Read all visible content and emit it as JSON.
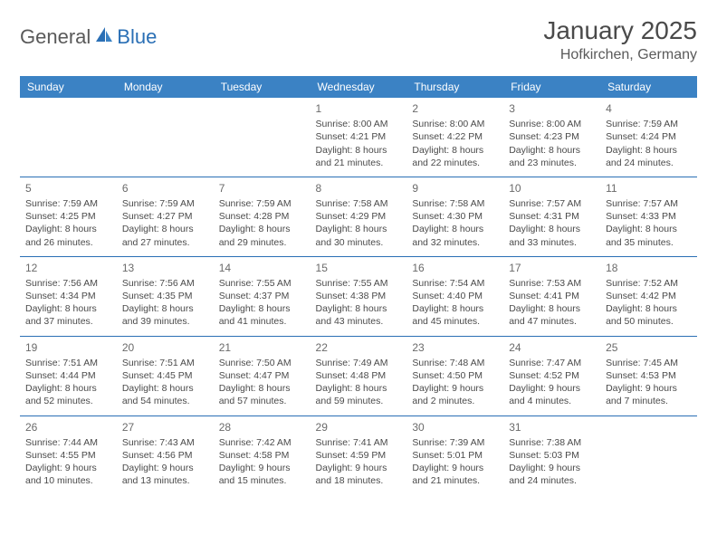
{
  "brand": {
    "part1": "General",
    "part2": "Blue"
  },
  "header": {
    "title": "January 2025",
    "location": "Hofkirchen, Germany"
  },
  "colors": {
    "header_bg": "#3b82c4",
    "border": "#2a6fb5",
    "text": "#4a4a4a",
    "brand_gray": "#5a5a5a",
    "brand_blue": "#2a6fb5"
  },
  "dayNames": [
    "Sunday",
    "Monday",
    "Tuesday",
    "Wednesday",
    "Thursday",
    "Friday",
    "Saturday"
  ],
  "weeks": [
    [
      null,
      null,
      null,
      {
        "n": "1",
        "sr": "8:00 AM",
        "ss": "4:21 PM",
        "dh": "8",
        "dm": "21"
      },
      {
        "n": "2",
        "sr": "8:00 AM",
        "ss": "4:22 PM",
        "dh": "8",
        "dm": "22"
      },
      {
        "n": "3",
        "sr": "8:00 AM",
        "ss": "4:23 PM",
        "dh": "8",
        "dm": "23"
      },
      {
        "n": "4",
        "sr": "7:59 AM",
        "ss": "4:24 PM",
        "dh": "8",
        "dm": "24"
      }
    ],
    [
      {
        "n": "5",
        "sr": "7:59 AM",
        "ss": "4:25 PM",
        "dh": "8",
        "dm": "26"
      },
      {
        "n": "6",
        "sr": "7:59 AM",
        "ss": "4:27 PM",
        "dh": "8",
        "dm": "27"
      },
      {
        "n": "7",
        "sr": "7:59 AM",
        "ss": "4:28 PM",
        "dh": "8",
        "dm": "29"
      },
      {
        "n": "8",
        "sr": "7:58 AM",
        "ss": "4:29 PM",
        "dh": "8",
        "dm": "30"
      },
      {
        "n": "9",
        "sr": "7:58 AM",
        "ss": "4:30 PM",
        "dh": "8",
        "dm": "32"
      },
      {
        "n": "10",
        "sr": "7:57 AM",
        "ss": "4:31 PM",
        "dh": "8",
        "dm": "33"
      },
      {
        "n": "11",
        "sr": "7:57 AM",
        "ss": "4:33 PM",
        "dh": "8",
        "dm": "35"
      }
    ],
    [
      {
        "n": "12",
        "sr": "7:56 AM",
        "ss": "4:34 PM",
        "dh": "8",
        "dm": "37"
      },
      {
        "n": "13",
        "sr": "7:56 AM",
        "ss": "4:35 PM",
        "dh": "8",
        "dm": "39"
      },
      {
        "n": "14",
        "sr": "7:55 AM",
        "ss": "4:37 PM",
        "dh": "8",
        "dm": "41"
      },
      {
        "n": "15",
        "sr": "7:55 AM",
        "ss": "4:38 PM",
        "dh": "8",
        "dm": "43"
      },
      {
        "n": "16",
        "sr": "7:54 AM",
        "ss": "4:40 PM",
        "dh": "8",
        "dm": "45"
      },
      {
        "n": "17",
        "sr": "7:53 AM",
        "ss": "4:41 PM",
        "dh": "8",
        "dm": "47"
      },
      {
        "n": "18",
        "sr": "7:52 AM",
        "ss": "4:42 PM",
        "dh": "8",
        "dm": "50"
      }
    ],
    [
      {
        "n": "19",
        "sr": "7:51 AM",
        "ss": "4:44 PM",
        "dh": "8",
        "dm": "52"
      },
      {
        "n": "20",
        "sr": "7:51 AM",
        "ss": "4:45 PM",
        "dh": "8",
        "dm": "54"
      },
      {
        "n": "21",
        "sr": "7:50 AM",
        "ss": "4:47 PM",
        "dh": "8",
        "dm": "57"
      },
      {
        "n": "22",
        "sr": "7:49 AM",
        "ss": "4:48 PM",
        "dh": "8",
        "dm": "59"
      },
      {
        "n": "23",
        "sr": "7:48 AM",
        "ss": "4:50 PM",
        "dh": "9",
        "dm": "2"
      },
      {
        "n": "24",
        "sr": "7:47 AM",
        "ss": "4:52 PM",
        "dh": "9",
        "dm": "4"
      },
      {
        "n": "25",
        "sr": "7:45 AM",
        "ss": "4:53 PM",
        "dh": "9",
        "dm": "7"
      }
    ],
    [
      {
        "n": "26",
        "sr": "7:44 AM",
        "ss": "4:55 PM",
        "dh": "9",
        "dm": "10"
      },
      {
        "n": "27",
        "sr": "7:43 AM",
        "ss": "4:56 PM",
        "dh": "9",
        "dm": "13"
      },
      {
        "n": "28",
        "sr": "7:42 AM",
        "ss": "4:58 PM",
        "dh": "9",
        "dm": "15"
      },
      {
        "n": "29",
        "sr": "7:41 AM",
        "ss": "4:59 PM",
        "dh": "9",
        "dm": "18"
      },
      {
        "n": "30",
        "sr": "7:39 AM",
        "ss": "5:01 PM",
        "dh": "9",
        "dm": "21"
      },
      {
        "n": "31",
        "sr": "7:38 AM",
        "ss": "5:03 PM",
        "dh": "9",
        "dm": "24"
      },
      null
    ]
  ]
}
